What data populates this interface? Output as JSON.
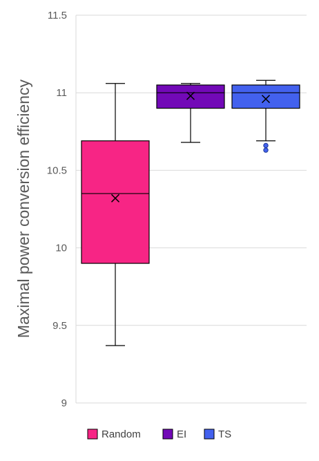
{
  "chart_data": {
    "type": "box",
    "title": "",
    "xlabel": "",
    "ylabel": "Maximal power conversion efficiency",
    "ylim": [
      9,
      11.5
    ],
    "yticks": [
      9,
      9.5,
      10,
      10.5,
      11,
      11.5
    ],
    "ytick_labels": [
      "9",
      "9.5",
      "10",
      "10.5",
      "11",
      "11.5"
    ],
    "grid": "horizontal",
    "legend_position": "bottom",
    "series": [
      {
        "name": "Random",
        "color": "#f72585",
        "min": 9.37,
        "q1": 9.9,
        "median": 10.35,
        "q3": 10.69,
        "max": 11.06,
        "mean": 10.32,
        "outliers": []
      },
      {
        "name": "EI",
        "color": "#7209b7",
        "min": 10.68,
        "q1": 10.9,
        "median": 11.0,
        "q3": 11.05,
        "max": 11.06,
        "mean": 10.98,
        "outliers": []
      },
      {
        "name": "TS",
        "color": "#4361ee",
        "min": 10.69,
        "q1": 10.9,
        "median": 11.0,
        "q3": 11.05,
        "max": 11.08,
        "mean": 10.96,
        "outliers": [
          10.66,
          10.63
        ]
      }
    ]
  }
}
